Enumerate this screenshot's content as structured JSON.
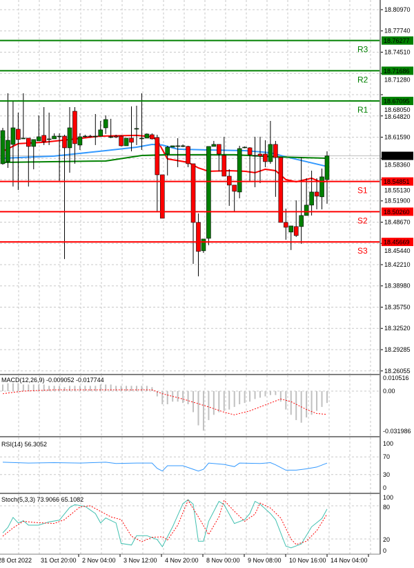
{
  "chart_data": [
    {
      "type": "candlestick",
      "price_axis": {
        "ylim": [
          18.26055,
          18.8097
        ],
        "ticks": [
          "18.80970",
          "18.77740",
          "18.74510",
          "18.71280",
          "18.68050",
          "18.64820",
          "18.61590",
          "18.58360",
          "18.55130",
          "18.51900",
          "18.48670",
          "18.45440",
          "18.42210",
          "18.38980",
          "18.35750",
          "18.32520",
          "18.29285",
          "18.26055"
        ]
      },
      "current_price": {
        "value": 18.5875,
        "label": "18.58750",
        "color": "#000000"
      },
      "levels": [
        {
          "name": "R3",
          "value": 18.76277,
          "label": "18.76277",
          "color": "#008000"
        },
        {
          "name": "R2",
          "value": 18.71686,
          "label": "18.71686",
          "color": "#008000"
        },
        {
          "name": "R1",
          "value": 18.67095,
          "label": "18.67095",
          "color": "#008000"
        },
        {
          "name": "S1",
          "value": 18.54851,
          "label": "18.54851",
          "color": "#ff0000"
        },
        {
          "name": "S2",
          "value": 18.5026,
          "label": "18.50260",
          "color": "#ff0000"
        },
        {
          "name": "S3",
          "value": 18.45669,
          "label": "18.45669",
          "color": "#ff0000"
        }
      ],
      "colors": {
        "up": "#008000",
        "down": "#ff0000",
        "wick": "#000000"
      },
      "candles_ohlc": [
        [
          18.5755,
          18.6301,
          18.574,
          18.6259
        ],
        [
          18.5787,
          18.6826,
          18.5692,
          18.6112
        ],
        [
          18.6049,
          18.67,
          18.5409,
          18.6301
        ],
        [
          18.628,
          18.6532,
          18.5356,
          18.6123
        ],
        [
          18.6133,
          18.6826,
          18.6133,
          18.6144
        ],
        [
          18.6144,
          18.6144,
          18.5409,
          18.6018
        ],
        [
          18.6018,
          18.6123,
          18.5671,
          18.6123
        ],
        [
          18.6102,
          18.649,
          18.6102,
          18.6165
        ],
        [
          18.6186,
          18.6616,
          18.6039,
          18.6091
        ],
        [
          18.6133,
          18.6532,
          18.6039,
          18.6133
        ],
        [
          18.6133,
          18.6217,
          18.6133,
          18.6175
        ],
        [
          18.6175,
          18.6217,
          18.5493,
          18.6175
        ],
        [
          18.6175,
          18.6196,
          18.4306,
          18.5997
        ],
        [
          18.5997,
          18.6616,
          18.5619,
          18.6301
        ],
        [
          18.6553,
          18.6616,
          18.5755,
          18.606
        ],
        [
          18.6039,
          18.6217,
          18.5965,
          18.6165
        ],
        [
          18.6175,
          18.6196,
          18.6154,
          18.6175
        ],
        [
          18.6175,
          18.6196,
          18.6154,
          18.617
        ],
        [
          18.6175,
          18.6511,
          18.6039,
          18.6175
        ],
        [
          18.6175,
          18.6406,
          18.6175,
          18.627
        ],
        [
          18.6301,
          18.649,
          18.6207,
          18.6427
        ],
        [
          18.6165,
          18.6438,
          18.6144,
          18.6165
        ],
        [
          18.6175,
          18.6196,
          18.6144,
          18.616
        ],
        [
          18.6175,
          18.6186,
          18.6018,
          18.6028
        ],
        [
          18.6028,
          18.6039,
          18.6028,
          18.6144
        ],
        [
          18.6144,
          18.6627,
          18.5944,
          18.6081
        ],
        [
          18.6291,
          18.6637,
          18.6039,
          18.6291
        ],
        [
          18.6144,
          18.6826,
          18.5965,
          18.6144
        ],
        [
          18.6144,
          18.6217,
          18.6144,
          18.6207
        ],
        [
          18.6196,
          18.6217,
          18.6123,
          18.6133
        ],
        [
          18.6154,
          18.6196,
          18.502,
          18.5587
        ],
        [
          18.5587,
          18.5587,
          18.4926,
          18.4926
        ],
        [
          18.5902,
          18.6028,
          18.5577,
          18.6007
        ],
        [
          18.6007,
          18.6028,
          18.6007,
          18.6028
        ],
        [
          18.6028,
          18.6144,
          18.5703,
          18.6028
        ],
        [
          18.6028,
          18.6049,
          18.6007,
          18.6028
        ],
        [
          18.6018,
          18.6028,
          18.5703,
          18.5755
        ],
        [
          18.5755,
          18.5755,
          18.4233,
          18.4863
        ],
        [
          18.4863,
          18.4999,
          18.4044,
          18.4422
        ],
        [
          18.4432,
          18.46,
          18.44,
          18.4611
        ],
        [
          18.4621,
          18.5976,
          18.4516,
          18.6018
        ],
        [
          18.6018,
          18.6102,
          18.6018,
          18.6049
        ],
        [
          18.6049,
          18.6049,
          18.564,
          18.5902
        ],
        [
          18.5881,
          18.6165,
          18.5566,
          18.5566
        ],
        [
          18.5566,
          18.5671,
          18.5115,
          18.543
        ],
        [
          18.543,
          18.543,
          18.5031,
          18.5336
        ],
        [
          18.5325,
          18.6028,
          18.523,
          18.5986
        ],
        [
          18.6007,
          18.6018,
          18.599,
          18.6007
        ],
        [
          18.5997,
          18.6007,
          18.548,
          18.5892
        ],
        [
          18.5881,
          18.6165,
          18.5398,
          18.5881
        ],
        [
          18.5902,
          18.6165,
          18.5461,
          18.5871
        ],
        [
          18.5902,
          18.6112,
          18.5703,
          18.5787
        ],
        [
          18.5787,
          18.6406,
          18.5755,
          18.6049
        ],
        [
          18.6049,
          18.6102,
          18.5252,
          18.585
        ],
        [
          18.585,
          18.585,
          18.4863,
          18.4863
        ],
        [
          18.4863,
          18.5073,
          18.46,
          18.4789
        ],
        [
          18.4716,
          18.481,
          18.4443,
          18.481
        ],
        [
          18.48,
          18.5199,
          18.4642,
          18.4663
        ],
        [
          18.48,
          18.585,
          18.4537,
          18.4968
        ],
        [
          18.4968,
          18.5535,
          18.4968,
          18.5126
        ],
        [
          18.5126,
          18.565,
          18.4968,
          18.5325
        ],
        [
          18.5325,
          18.5535,
          18.5062,
          18.5262
        ],
        [
          18.5252,
          18.5682,
          18.5062,
          18.5556
        ],
        [
          18.5514,
          18.5944,
          18.5147,
          18.5875
        ]
      ],
      "moving_averages": [
        {
          "color": "#ff0000",
          "points": [
            [
              0,
              18.5944
            ],
            [
              3,
              18.606
            ],
            [
              8,
              18.6081
            ],
            [
              13,
              18.6123
            ],
            [
              19,
              18.6175
            ],
            [
              26,
              18.6186
            ],
            [
              29,
              18.6165
            ],
            [
              30,
              18.6112
            ],
            [
              32,
              18.5829
            ],
            [
              36,
              18.5776
            ],
            [
              38,
              18.5692
            ],
            [
              40,
              18.564
            ],
            [
              44,
              18.565
            ],
            [
              47,
              18.564
            ],
            [
              49,
              18.5619
            ],
            [
              51,
              18.5671
            ],
            [
              53,
              18.565
            ],
            [
              55,
              18.5514
            ],
            [
              57,
              18.548
            ],
            [
              60,
              18.5535
            ],
            [
              62,
              18.5472
            ],
            [
              63,
              18.5492
            ]
          ]
        },
        {
          "color": "#3399ff",
          "points": [
            [
              0,
              18.5839
            ],
            [
              10,
              18.5871
            ],
            [
              20,
              18.5954
            ],
            [
              26,
              18.6007
            ],
            [
              29,
              18.6049
            ],
            [
              31,
              18.6039
            ],
            [
              34,
              18.5976
            ],
            [
              40,
              18.5965
            ],
            [
              47,
              18.5954
            ],
            [
              52,
              18.5923
            ],
            [
              55,
              18.586
            ],
            [
              59,
              18.5787
            ],
            [
              63,
              18.5713
            ]
          ]
        },
        {
          "color": "#008000",
          "points": [
            [
              0,
              18.5776
            ],
            [
              20,
              18.5797
            ],
            [
              27,
              18.5881
            ],
            [
              32,
              18.5892
            ],
            [
              45,
              18.5892
            ],
            [
              53,
              18.586
            ],
            [
              63,
              18.5839
            ]
          ]
        }
      ],
      "x_ticks": [
        "28 Oct 2022",
        "31 Oct 20:00",
        "2 Nov 04:00",
        "3 Nov 12:00",
        "4 Nov 20:00",
        "8 Nov 00:00",
        "9 Nov 08:00",
        "10 Nov 16:00",
        "14 Nov 04:00"
      ]
    },
    {
      "type": "bar",
      "title": "MACD(12,26,9) -0.009052 -0.017744",
      "ylim": [
        -0.031986,
        0.010516
      ],
      "ticks": [
        "0.010516",
        "0.00",
        "-0.031986"
      ],
      "histogram": [
        0.005,
        0.006,
        0.006,
        0.006,
        0.005,
        0.005,
        0.005,
        0.005,
        0.005,
        0.004,
        0.004,
        0.004,
        0.003,
        0.004,
        0.004,
        0.004,
        0.004,
        0.004,
        0.004,
        0.005,
        0.005,
        0.005,
        0.004,
        0.004,
        0.004,
        0.004,
        0.004,
        0.004,
        0.004,
        0.003,
        -0.004,
        -0.01,
        -0.01,
        -0.008,
        -0.008,
        -0.009,
        -0.01,
        -0.016,
        -0.026,
        -0.03,
        -0.022,
        -0.018,
        -0.016,
        -0.015,
        -0.014,
        -0.012,
        -0.01,
        -0.009,
        -0.008,
        -0.006,
        -0.005,
        -0.004,
        -0.003,
        -0.003,
        -0.008,
        -0.014,
        -0.018,
        -0.022,
        -0.024,
        -0.02,
        -0.018,
        -0.015,
        -0.012,
        -0.009
      ],
      "signal": [
        [
          0,
          -0.002
        ],
        [
          4,
          0.0
        ],
        [
          10,
          0.001
        ],
        [
          29,
          0.001
        ],
        [
          31,
          -0.002
        ],
        [
          35,
          -0.006
        ],
        [
          40,
          -0.012
        ],
        [
          43,
          -0.016
        ],
        [
          45,
          -0.018
        ],
        [
          48,
          -0.015
        ],
        [
          52,
          -0.009
        ],
        [
          54,
          -0.006
        ],
        [
          56,
          -0.008
        ],
        [
          59,
          -0.014
        ],
        [
          61,
          -0.017
        ],
        [
          63,
          -0.0177
        ]
      ],
      "colors": {
        "histogram": "#c0c0c0",
        "signal": "#ff0000"
      }
    },
    {
      "type": "line",
      "title": "RSI(14) 56.3052",
      "ylim": [
        0,
        100
      ],
      "ticks": [
        "100",
        "70",
        "30",
        "0"
      ],
      "color": "#3399ff",
      "points": [
        [
          0,
          58
        ],
        [
          5,
          56
        ],
        [
          10,
          57
        ],
        [
          15,
          56
        ],
        [
          20,
          58
        ],
        [
          22,
          55
        ],
        [
          26,
          56
        ],
        [
          29,
          56
        ],
        [
          30,
          44
        ],
        [
          31,
          38
        ],
        [
          32,
          50
        ],
        [
          35,
          50
        ],
        [
          37,
          42
        ],
        [
          38,
          38
        ],
        [
          39,
          42
        ],
        [
          40,
          56
        ],
        [
          43,
          53
        ],
        [
          45,
          48
        ],
        [
          46,
          56
        ],
        [
          50,
          55
        ],
        [
          52,
          57
        ],
        [
          53,
          52
        ],
        [
          55,
          40
        ],
        [
          57,
          40
        ],
        [
          59,
          43
        ],
        [
          61,
          47
        ],
        [
          63,
          56
        ]
      ]
    },
    {
      "type": "line",
      "title": "Stoch(5,3,3) 73.9066 65.1082",
      "ylim": [
        0,
        100
      ],
      "ticks": [
        "100",
        "80",
        "20",
        "0"
      ],
      "main": {
        "color": "#40c0b0",
        "points": [
          [
            0,
            31
          ],
          [
            1,
            41
          ],
          [
            2,
            59
          ],
          [
            3,
            49
          ],
          [
            4,
            53
          ],
          [
            5,
            45
          ],
          [
            7,
            45
          ],
          [
            9,
            51
          ],
          [
            11,
            54
          ],
          [
            13,
            77
          ],
          [
            14,
            82
          ],
          [
            16,
            79
          ],
          [
            18,
            66
          ],
          [
            19,
            49
          ],
          [
            20,
            58
          ],
          [
            22,
            49
          ],
          [
            23,
            12
          ],
          [
            25,
            9
          ],
          [
            26,
            26
          ],
          [
            28,
            26
          ],
          [
            30,
            19
          ],
          [
            31,
            6
          ],
          [
            33,
            42
          ],
          [
            35,
            84
          ],
          [
            36,
            91
          ],
          [
            37,
            83
          ],
          [
            38,
            16
          ],
          [
            39,
            16
          ],
          [
            40,
            52
          ],
          [
            42,
            88
          ],
          [
            43,
            82
          ],
          [
            45,
            48
          ],
          [
            47,
            55
          ],
          [
            48,
            66
          ],
          [
            49,
            88
          ],
          [
            50,
            83
          ],
          [
            52,
            66
          ],
          [
            53,
            55
          ],
          [
            55,
            7
          ],
          [
            56,
            4
          ],
          [
            58,
            11
          ],
          [
            60,
            42
          ],
          [
            62,
            57
          ],
          [
            63,
            74
          ]
        ]
      },
      "signal": {
        "color": "#ff0000",
        "points": [
          [
            0,
            25
          ],
          [
            2,
            40
          ],
          [
            4,
            52
          ],
          [
            6,
            50
          ],
          [
            10,
            48
          ],
          [
            12,
            55
          ],
          [
            15,
            78
          ],
          [
            17,
            80
          ],
          [
            19,
            70
          ],
          [
            21,
            60
          ],
          [
            23,
            55
          ],
          [
            25,
            25
          ],
          [
            27,
            15
          ],
          [
            29,
            23
          ],
          [
            31,
            24
          ],
          [
            32,
            18
          ],
          [
            34,
            45
          ],
          [
            36,
            90
          ],
          [
            38,
            60
          ],
          [
            40,
            28
          ],
          [
            42,
            60
          ],
          [
            43,
            90
          ],
          [
            45,
            70
          ],
          [
            47,
            52
          ],
          [
            49,
            65
          ],
          [
            50,
            85
          ],
          [
            52,
            76
          ],
          [
            54,
            58
          ],
          [
            56,
            20
          ],
          [
            57,
            10
          ],
          [
            59,
            16
          ],
          [
            61,
            35
          ],
          [
            63,
            65
          ]
        ]
      }
    }
  ]
}
